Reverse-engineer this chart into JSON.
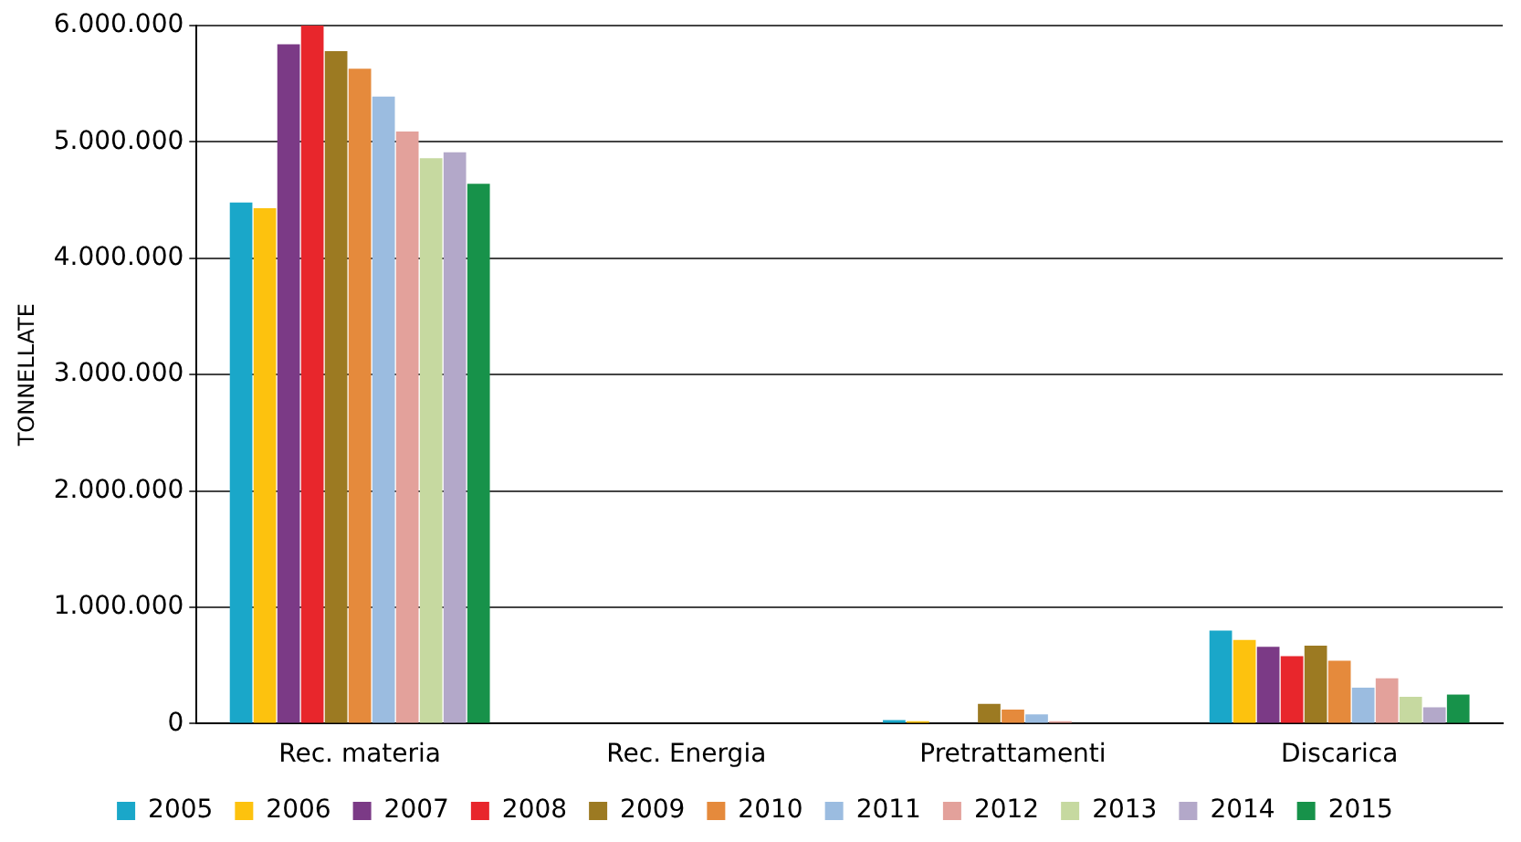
{
  "chart_data": {
    "type": "bar",
    "ylabel": "TONNELLATE",
    "categories": [
      "Rec. materia",
      "Rec. Energia",
      "Pretrattamenti",
      "Discarica"
    ],
    "series": [
      {
        "name": "2005",
        "color": "#1aa7c9",
        "values": [
          4480000,
          0,
          30000,
          800000
        ]
      },
      {
        "name": "2006",
        "color": "#fdc20e",
        "values": [
          4430000,
          0,
          20000,
          720000
        ]
      },
      {
        "name": "2007",
        "color": "#7b3a86",
        "values": [
          5840000,
          0,
          null,
          660000
        ]
      },
      {
        "name": "2008",
        "color": "#e8262c",
        "values": [
          6000000,
          0,
          null,
          580000
        ]
      },
      {
        "name": "2009",
        "color": "#9c7a22",
        "values": [
          5780000,
          0,
          170000,
          670000
        ]
      },
      {
        "name": "2010",
        "color": "#e58a3c",
        "values": [
          5630000,
          0,
          120000,
          540000
        ]
      },
      {
        "name": "2011",
        "color": "#9bbce0",
        "values": [
          5390000,
          0,
          80000,
          310000
        ]
      },
      {
        "name": "2012",
        "color": "#e3a19b",
        "values": [
          5090000,
          0,
          20000,
          390000
        ]
      },
      {
        "name": "2013",
        "color": "#c6d9a0",
        "values": [
          4860000,
          0,
          null,
          230000
        ]
      },
      {
        "name": "2014",
        "color": "#b3a8c9",
        "values": [
          4910000,
          0,
          null,
          140000
        ]
      },
      {
        "name": "2015",
        "color": "#17924a",
        "values": [
          4640000,
          0,
          null,
          250000
        ]
      }
    ],
    "ylim": [
      0,
      6000000
    ],
    "yticks": [
      {
        "value": 0,
        "label": "0"
      },
      {
        "value": 1000000,
        "label": "1.000.000"
      },
      {
        "value": 2000000,
        "label": "2.000.000"
      },
      {
        "value": 3000000,
        "label": "3.000.000"
      },
      {
        "value": 4000000,
        "label": "4.000.000"
      },
      {
        "value": 5000000,
        "label": "5.000.000"
      },
      {
        "value": 6000000,
        "label": "6.000.000"
      }
    ],
    "grid": "y",
    "legend": "bottom"
  }
}
